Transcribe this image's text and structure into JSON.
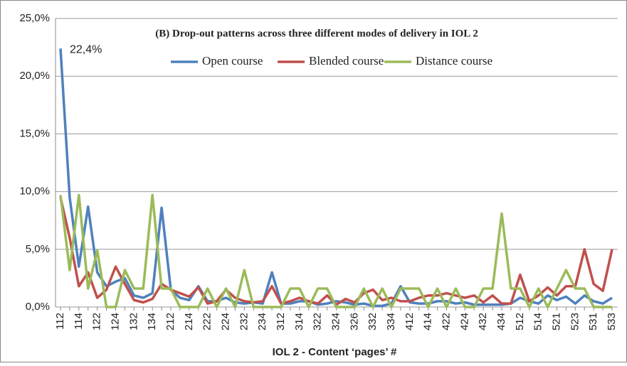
{
  "chart_data": {
    "type": "line",
    "title": "(B) Drop-out patterns across three different modes of delivery in IOL 2",
    "xlabel": "IOL 2 - Content ‘pages’ #",
    "annotation": "22,4%",
    "categories": [
      "112",
      null,
      "114",
      null,
      "122",
      null,
      "124",
      null,
      "132",
      null,
      "134",
      null,
      "212",
      null,
      "214",
      null,
      "222",
      null,
      "224",
      null,
      "232",
      null,
      "234",
      null,
      "312",
      null,
      "314",
      null,
      "322",
      null,
      "324",
      null,
      "326",
      null,
      "332",
      null,
      "334",
      null,
      "412",
      null,
      "414",
      null,
      "422",
      null,
      "424",
      null,
      "432",
      null,
      "434",
      null,
      "512",
      null,
      "514",
      null,
      "521",
      null,
      "523",
      null,
      "531",
      null,
      "533"
    ],
    "series": [
      {
        "name": "Open course",
        "color": "#4f81bd",
        "values": [
          22.4,
          9.5,
          3.5,
          8.7,
          3.0,
          1.8,
          2.2,
          2.5,
          1.0,
          0.8,
          1.2,
          8.6,
          1.5,
          0.8,
          0.6,
          1.8,
          0.5,
          0.5,
          0.8,
          0.4,
          0.3,
          0.4,
          0.3,
          3.0,
          0.3,
          0.3,
          0.5,
          0.5,
          0.2,
          0.3,
          0.5,
          0.4,
          0.2,
          0.3,
          0.1,
          0.1,
          0.3,
          1.8,
          0.4,
          0.3,
          0.3,
          0.5,
          0.5,
          0.3,
          0.4,
          0.2,
          0.2,
          0.2,
          0.2,
          0.3,
          0.8,
          0.5,
          0.3,
          1.0,
          0.6,
          0.9,
          0.3,
          1.0,
          0.5,
          0.3,
          0.8
        ]
      },
      {
        "name": "Blended course",
        "color": "#c0504d",
        "values": [
          9.5,
          6.0,
          1.8,
          3.0,
          0.8,
          1.5,
          3.5,
          2.0,
          0.6,
          0.4,
          0.7,
          2.0,
          1.5,
          1.2,
          0.9,
          1.7,
          0.3,
          0.5,
          1.5,
          0.8,
          0.5,
          0.4,
          0.5,
          1.8,
          0.3,
          0.5,
          0.8,
          0.5,
          0.3,
          1.0,
          0.2,
          0.7,
          0.4,
          1.2,
          1.5,
          0.6,
          0.8,
          0.5,
          0.5,
          0.8,
          1.0,
          1.0,
          1.2,
          1.0,
          0.8,
          1.0,
          0.4,
          1.0,
          0.3,
          0.3,
          2.8,
          0.5,
          1.0,
          1.7,
          1.0,
          1.8,
          1.8,
          5.0,
          2.0,
          1.4,
          5.0
        ]
      },
      {
        "name": "Distance course",
        "color": "#9bbb59",
        "values": [
          9.7,
          3.2,
          9.7,
          1.6,
          4.9,
          0,
          0,
          3.2,
          1.6,
          1.6,
          9.7,
          1.6,
          1.6,
          0,
          0,
          0,
          1.6,
          0,
          1.6,
          0,
          3.2,
          0,
          0,
          0,
          0,
          1.6,
          1.6,
          0,
          1.6,
          1.6,
          0,
          0,
          0,
          1.6,
          0,
          1.6,
          0,
          1.6,
          1.6,
          1.6,
          0,
          1.6,
          0,
          1.6,
          0,
          0,
          1.6,
          1.6,
          8.1,
          1.6,
          1.6,
          0,
          1.6,
          0,
          1.6,
          3.2,
          1.6,
          1.6,
          0,
          0,
          0
        ]
      }
    ],
    "ylim": [
      0,
      25
    ],
    "yticks": [
      {
        "value": 0,
        "label": "0,0%"
      },
      {
        "value": 5,
        "label": "5,0%"
      },
      {
        "value": 10,
        "label": "10,0%"
      },
      {
        "value": 15,
        "label": "15,0%"
      },
      {
        "value": 20,
        "label": "20,0%"
      },
      {
        "value": 25,
        "label": "25,0%"
      }
    ],
    "grid": true,
    "legend": "top"
  }
}
